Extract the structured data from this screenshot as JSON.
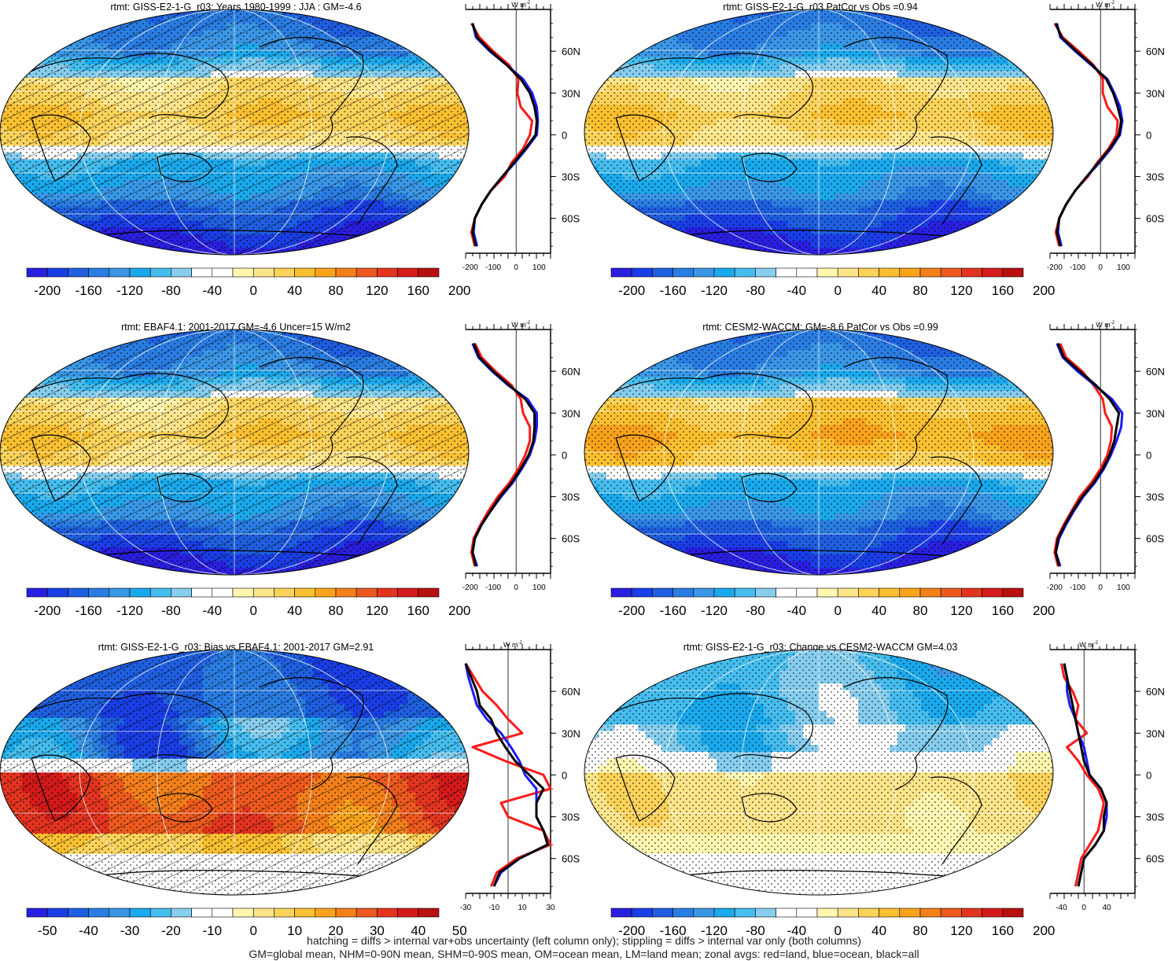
{
  "colormap": [
    "#2a1fe0",
    "#1a3ee6",
    "#1f5fe0",
    "#2a7de2",
    "#3b97e6",
    "#1aa9ec",
    "#46bdee",
    "#86cdee",
    "#ffffff",
    "#ffffff",
    "#fff7b0",
    "#fde58a",
    "#fcd35a",
    "#fbc030",
    "#f9a31c",
    "#f4801a",
    "#ee5a1e",
    "#e33420",
    "#d41a1a",
    "#b80f0f"
  ],
  "footer": {
    "line1": "hatching = diffs > internal var+obs uncertainty (left column only); stippling = diffs > internal var only (both columns)",
    "line2": "GM=global mean, NHM=0-90N mean, SHM=0-90S mean, OM=ocean mean, LM=land mean; zonal avgs: red=land, blue=ocean, black=all"
  },
  "zonal_axis": {
    "unit": "W m",
    "unit_sup": "-2",
    "lat_ticks": [
      "60N",
      "30N",
      "0",
      "30S",
      "60S"
    ]
  },
  "panels": [
    {
      "title": "rtmt: GISS-E2-1-G_r03: Years 1980-1999 : JJA : GM=-4.6",
      "map": "clim",
      "hatched": true,
      "colorbar_labels": [
        "-200",
        "-160",
        "-120",
        "-80",
        "-40",
        "0",
        "40",
        "80",
        "120",
        "160",
        "200"
      ],
      "zonal_xticks": [
        "-200",
        "-100",
        "0",
        "100"
      ]
    },
    {
      "title": "rtmt: GISS-E2-1-G_r03 PatCor vs Obs =0.94",
      "map": "clim",
      "hatched": false,
      "colorbar_labels": [
        "-200",
        "-160",
        "-120",
        "-80",
        "-40",
        "0",
        "40",
        "80",
        "120",
        "160",
        "200"
      ],
      "zonal_xticks": [
        "-200",
        "-100",
        "0",
        "100"
      ]
    },
    {
      "title": "rtmt: EBAF4.1: 2001-2017 GM=-4.6 Uncer=15 W/m2",
      "map": "clim",
      "hatched": true,
      "colorbar_labels": [
        "-200",
        "-160",
        "-120",
        "-80",
        "-40",
        "0",
        "40",
        "80",
        "120",
        "160",
        "200"
      ],
      "zonal_xticks": [
        "-200",
        "-100",
        "0",
        "100"
      ]
    },
    {
      "title": "rtmt: CESM2-WACCM: GM=-8.6 PatCor vs Obs =0.99",
      "map": "clim2",
      "hatched": false,
      "colorbar_labels": [
        "-200",
        "-160",
        "-120",
        "-80",
        "-40",
        "0",
        "40",
        "80",
        "120",
        "160",
        "200"
      ],
      "zonal_xticks": [
        "-200",
        "-100",
        "0",
        "100"
      ]
    },
    {
      "title": "rtmt: GISS-E2-1-G_r03: Bias vs EBAF4.1: 2001-2017 GM=2.91",
      "map": "bias",
      "hatched": true,
      "colorbar_labels": [
        "-50",
        "-40",
        "-30",
        "-20",
        "-10",
        "0",
        "10",
        "20",
        "30",
        "40",
        "50"
      ],
      "zonal_xticks": [
        "-30",
        "-10",
        "10",
        "30"
      ]
    },
    {
      "title": "rtmt: GISS-E2-1-G_r03: Change vs CESM2-WACCM GM=4.03",
      "map": "change",
      "hatched": false,
      "colorbar_labels": [
        "-200",
        "-160",
        "-120",
        "-80",
        "-40",
        "0",
        "40",
        "80",
        "120",
        "160",
        "200"
      ],
      "zonal_xticks": [
        "-40",
        "0",
        "40"
      ]
    }
  ],
  "chart_data": [
    {
      "type": "heatmap",
      "title": "rtmt: GISS-E2-1-G_r03: Years 1980-1999 : JJA : GM=-4.6",
      "zonal_mean": {
        "lat": [
          80,
          70,
          60,
          50,
          40,
          30,
          20,
          10,
          0,
          -10,
          -20,
          -30,
          -40,
          -50,
          -60,
          -70,
          -80
        ],
        "all": [
          -190,
          -170,
          -110,
          -40,
          20,
          60,
          80,
          90,
          85,
          40,
          -10,
          -60,
          -110,
          -150,
          -180,
          -190,
          -175
        ],
        "land": [
          -195,
          -160,
          -100,
          -30,
          10,
          5,
          20,
          70,
          60,
          30,
          -20,
          -50,
          -110,
          -150,
          -180,
          -195,
          -180
        ],
        "ocean": [
          -190,
          -175,
          -115,
          -40,
          30,
          70,
          90,
          95,
          90,
          45,
          -5,
          -60,
          -110,
          -150,
          -180,
          -185,
          -170
        ]
      }
    },
    {
      "type": "heatmap",
      "title": "rtmt: GISS-E2-1-G_r03 PatCor vs Obs =0.94",
      "zonal_mean": {
        "lat": [
          80,
          70,
          60,
          50,
          40,
          30,
          20,
          10,
          0,
          -10,
          -20,
          -30,
          -40,
          -50,
          -60,
          -70,
          -80
        ],
        "all": [
          -195,
          -170,
          -105,
          -35,
          25,
          55,
          75,
          90,
          80,
          40,
          -10,
          -60,
          -110,
          -150,
          -180,
          -190,
          -175
        ],
        "land": [
          -200,
          -165,
          -95,
          -30,
          10,
          10,
          30,
          75,
          70,
          35,
          -15,
          -55,
          -110,
          -150,
          -180,
          -195,
          -180
        ],
        "ocean": [
          -190,
          -175,
          -110,
          -40,
          30,
          60,
          85,
          95,
          85,
          45,
          -5,
          -60,
          -110,
          -150,
          -180,
          -185,
          -170
        ]
      }
    },
    {
      "type": "heatmap",
      "title": "rtmt: EBAF4.1: 2001-2017 GM=-4.6 Uncer=15 W/m2",
      "zonal_mean": {
        "lat": [
          80,
          70,
          60,
          50,
          40,
          30,
          20,
          10,
          0,
          -10,
          -20,
          -30,
          -40,
          -50,
          -60,
          -70,
          -80
        ],
        "all": [
          -185,
          -160,
          -100,
          -30,
          40,
          80,
          80,
          75,
          55,
          20,
          -20,
          -70,
          -110,
          -150,
          -180,
          -190,
          -175
        ],
        "land": [
          -180,
          -150,
          -90,
          -20,
          20,
          30,
          60,
          60,
          40,
          10,
          -30,
          -80,
          -120,
          -155,
          -185,
          -195,
          -180
        ],
        "ocean": [
          -190,
          -165,
          -105,
          -35,
          50,
          90,
          90,
          80,
          60,
          25,
          -15,
          -65,
          -110,
          -150,
          -180,
          -190,
          -170
        ]
      }
    },
    {
      "type": "heatmap",
      "title": "rtmt: CESM2-WACCM: GM=-8.6 PatCor vs Obs =0.99",
      "zonal_mean": {
        "lat": [
          80,
          70,
          60,
          50,
          40,
          30,
          20,
          10,
          0,
          -10,
          -20,
          -30,
          -40,
          -50,
          -60,
          -70,
          -80
        ],
        "all": [
          -185,
          -160,
          -90,
          -20,
          40,
          80,
          70,
          60,
          40,
          10,
          -30,
          -80,
          -120,
          -155,
          -185,
          -195,
          -180
        ],
        "land": [
          -175,
          -150,
          -80,
          -30,
          10,
          20,
          50,
          45,
          30,
          0,
          -40,
          -90,
          -125,
          -160,
          -190,
          -200,
          -185
        ],
        "ocean": [
          -190,
          -165,
          -100,
          -25,
          50,
          95,
          90,
          70,
          45,
          15,
          -25,
          -75,
          -115,
          -150,
          -180,
          -195,
          -175
        ]
      }
    },
    {
      "type": "heatmap",
      "title": "rtmt: GISS-E2-1-G_r03: Bias vs EBAF4.1: 2001-2017 GM=2.91",
      "zonal_mean": {
        "lat": [
          80,
          70,
          60,
          50,
          40,
          30,
          20,
          10,
          0,
          -10,
          -20,
          -30,
          -40,
          -50,
          -60,
          -70,
          -80
        ],
        "all": [
          -30,
          -26,
          -22,
          -20,
          -12,
          -8,
          -2,
          5,
          15,
          25,
          20,
          20,
          25,
          28,
          8,
          -6,
          -10
        ],
        "land": [
          -30,
          -24,
          -18,
          -8,
          0,
          10,
          -25,
          -2,
          25,
          30,
          -5,
          0,
          25,
          30,
          6,
          -8,
          -12
        ],
        "ocean": [
          -30,
          -28,
          -25,
          -22,
          -15,
          -5,
          2,
          8,
          12,
          20,
          20,
          20,
          25,
          28,
          8,
          -5,
          -10
        ]
      }
    },
    {
      "type": "heatmap",
      "title": "rtmt: GISS-E2-1-G_r03: Change vs CESM2-WACCM GM=4.03",
      "zonal_mean": {
        "lat": [
          80,
          70,
          60,
          50,
          40,
          30,
          20,
          10,
          0,
          -10,
          -20,
          -30,
          -40,
          -50,
          -60,
          -70,
          -80
        ],
        "all": [
          -35,
          -30,
          -25,
          -20,
          -15,
          -10,
          -5,
          0,
          10,
          30,
          40,
          35,
          35,
          20,
          0,
          -5,
          -10
        ],
        "land": [
          -40,
          -35,
          -20,
          -10,
          -15,
          5,
          -30,
          -10,
          5,
          25,
          35,
          30,
          25,
          10,
          -5,
          -10,
          -15
        ],
        "ocean": [
          -35,
          -30,
          -30,
          -25,
          -15,
          -10,
          0,
          5,
          10,
          30,
          40,
          40,
          35,
          20,
          0,
          -5,
          -10
        ]
      }
    }
  ]
}
